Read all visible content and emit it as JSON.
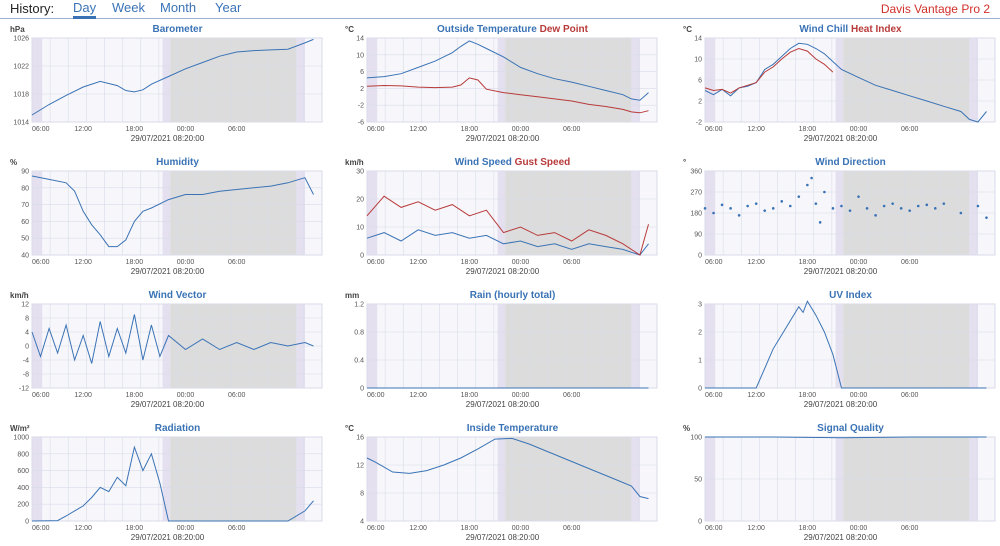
{
  "header": {
    "history_label": "History:",
    "tabs": [
      "Day",
      "Week",
      "Month",
      "Year"
    ],
    "active_tab": "Day",
    "station": "Davis Vantage Pro 2"
  },
  "colors": {
    "blue": "#3a73b5",
    "red": "#b83a3a",
    "grid": "#d8dbe8",
    "night": "#dcdcdc",
    "plot": "#f7f7fb"
  },
  "chart_data": [
    {
      "id": "barometer",
      "type": "line",
      "title": [
        {
          "text": "Barometer",
          "color": "blue"
        }
      ],
      "unit": "hPa",
      "ylim": [
        1014,
        1026
      ],
      "yticks": [
        1014,
        1018,
        1022,
        1026
      ],
      "xticks": [
        "06:00",
        "12:00",
        "18:00",
        "00:00",
        "06:00"
      ],
      "footer": "29/07/2021 08:20:00",
      "series": [
        {
          "name": "Barometer",
          "color": "blue",
          "x": [
            0,
            2,
            4,
            6,
            8,
            10,
            11,
            12,
            13,
            14,
            16,
            18,
            20,
            22,
            24,
            26,
            28,
            30,
            32,
            33
          ],
          "y": [
            1015,
            1016.5,
            1017.8,
            1019,
            1019.8,
            1019.2,
            1018.5,
            1018.3,
            1018.6,
            1019.4,
            1020.5,
            1021.6,
            1022.5,
            1023.4,
            1024,
            1024.2,
            1024.3,
            1024.4,
            1025.3,
            1025.8
          ]
        }
      ]
    },
    {
      "id": "outside-temperature",
      "type": "line",
      "title": [
        {
          "text": "Outside Temperature",
          "color": "blue"
        },
        {
          "text": " Dew Point",
          "color": "red"
        }
      ],
      "unit": "°C",
      "ylim": [
        -6,
        14
      ],
      "yticks": [
        -6,
        -2,
        2,
        6,
        10,
        14
      ],
      "xticks": [
        "06:00",
        "12:00",
        "18:00",
        "00:00",
        "06:00"
      ],
      "footer": "29/07/2021 08:20:00",
      "series": [
        {
          "name": "Outside Temperature",
          "color": "blue",
          "x": [
            0,
            2,
            4,
            6,
            8,
            10,
            11,
            12,
            13,
            14,
            16,
            18,
            20,
            22,
            24,
            26,
            28,
            30,
            31,
            32,
            33
          ],
          "y": [
            4.5,
            4.8,
            5.5,
            7,
            8.5,
            10.5,
            12,
            13.3,
            12.5,
            11.5,
            9.5,
            7,
            5.5,
            4.3,
            3.5,
            2.5,
            1.5,
            0.5,
            -0.5,
            -0.8,
            1
          ]
        },
        {
          "name": "Dew Point",
          "color": "red",
          "x": [
            0,
            2,
            4,
            6,
            8,
            10,
            11,
            12,
            13,
            14,
            16,
            18,
            20,
            22,
            24,
            26,
            28,
            30,
            31,
            32,
            33
          ],
          "y": [
            2.5,
            2.7,
            2.6,
            2.3,
            2.2,
            2.3,
            2.8,
            4.5,
            4,
            1.8,
            1,
            0.5,
            0,
            -0.5,
            -1,
            -1.8,
            -2.3,
            -3,
            -3.6,
            -3.8,
            -3.3
          ]
        }
      ]
    },
    {
      "id": "wind-chill",
      "type": "line",
      "title": [
        {
          "text": "Wind Chill",
          "color": "blue"
        },
        {
          "text": " Heat Index",
          "color": "red"
        }
      ],
      "unit": "°C",
      "ylim": [
        -2,
        14
      ],
      "yticks": [
        -2,
        2,
        6,
        10,
        14
      ],
      "xticks": [
        "06:00",
        "12:00",
        "18:00",
        "00:00",
        "06:00"
      ],
      "footer": "29/07/2021 08:20:00",
      "series": [
        {
          "name": "Wind Chill",
          "color": "blue",
          "x": [
            0,
            1,
            2,
            3,
            4,
            5,
            6,
            7,
            8,
            9,
            10,
            11,
            12,
            13,
            14,
            15,
            16,
            18,
            20,
            22,
            24,
            26,
            28,
            30,
            31,
            32,
            33
          ],
          "y": [
            4,
            3.2,
            4.2,
            3,
            4.5,
            4.8,
            5.5,
            8,
            9,
            10.5,
            12,
            13,
            12.8,
            12,
            11,
            9.5,
            8,
            6.5,
            5,
            4,
            3,
            2,
            1,
            0,
            -1.5,
            -2,
            0
          ]
        },
        {
          "name": "Heat Index",
          "color": "red",
          "x": [
            0,
            1,
            2,
            3,
            4,
            5,
            6,
            7,
            8,
            9,
            10,
            11,
            12,
            13,
            14,
            15
          ],
          "y": [
            4.5,
            4,
            4.2,
            3.5,
            4.5,
            5,
            5.5,
            7.5,
            8.5,
            10,
            11.3,
            12,
            11.5,
            10,
            9,
            7.5
          ]
        }
      ]
    },
    {
      "id": "humidity",
      "type": "line",
      "title": [
        {
          "text": "Humidity",
          "color": "blue"
        }
      ],
      "unit": "%",
      "ylim": [
        40,
        90
      ],
      "yticks": [
        40,
        50,
        60,
        70,
        80,
        90
      ],
      "xticks": [
        "06:00",
        "12:00",
        "18:00",
        "00:00",
        "06:00"
      ],
      "footer": "29/07/2021 08:20:00",
      "series": [
        {
          "name": "Humidity",
          "color": "blue",
          "x": [
            0,
            2,
            4,
            5,
            6,
            7,
            8,
            9,
            10,
            11,
            12,
            13,
            14,
            16,
            18,
            20,
            22,
            24,
            26,
            28,
            30,
            32,
            33
          ],
          "y": [
            87,
            85,
            83,
            78,
            66,
            58,
            52,
            45,
            45,
            49,
            60,
            66,
            68,
            73,
            76,
            76,
            78,
            79,
            80,
            81,
            83,
            86,
            76
          ]
        }
      ]
    },
    {
      "id": "wind-speed",
      "type": "line",
      "title": [
        {
          "text": "Wind Speed",
          "color": "blue"
        },
        {
          "text": " Gust Speed",
          "color": "red"
        }
      ],
      "unit": "km/h",
      "ylim": [
        0,
        30
      ],
      "yticks": [
        0,
        10,
        20,
        30
      ],
      "xticks": [
        "06:00",
        "12:00",
        "18:00",
        "00:00",
        "06:00"
      ],
      "footer": "29/07/2021 08:20:00",
      "series": [
        {
          "name": "Wind Speed",
          "color": "blue",
          "x": [
            0,
            2,
            4,
            6,
            8,
            10,
            12,
            14,
            16,
            18,
            20,
            22,
            24,
            26,
            28,
            30,
            32,
            33
          ],
          "y": [
            6,
            8,
            5,
            9,
            7,
            8,
            6,
            7,
            4,
            5,
            3,
            4,
            2,
            4,
            3,
            2,
            0,
            4
          ]
        },
        {
          "name": "Gust Speed",
          "color": "red",
          "x": [
            0,
            2,
            4,
            6,
            8,
            10,
            12,
            14,
            16,
            18,
            20,
            22,
            24,
            26,
            28,
            30,
            32,
            33
          ],
          "y": [
            14,
            21,
            17,
            19,
            16,
            18,
            14,
            16,
            8,
            10,
            7,
            8,
            5,
            9,
            7,
            4,
            0,
            11
          ]
        }
      ]
    },
    {
      "id": "wind-direction",
      "type": "scatter",
      "title": [
        {
          "text": "Wind Direction",
          "color": "blue"
        }
      ],
      "unit": "°",
      "ylim": [
        0,
        360
      ],
      "yticks": [
        0,
        90,
        180,
        270,
        360
      ],
      "xticks": [
        "06:00",
        "12:00",
        "18:00",
        "00:00",
        "06:00"
      ],
      "footer": "29/07/2021 08:20:00",
      "series": [
        {
          "name": "Wind Direction",
          "color": "blue",
          "x": [
            0,
            1,
            2,
            3,
            4,
            5,
            6,
            7,
            8,
            9,
            10,
            11,
            12,
            12.5,
            13,
            13.5,
            14,
            15,
            16,
            17,
            18,
            19,
            20,
            21,
            22,
            23,
            24,
            25,
            26,
            27,
            28,
            30,
            32,
            33
          ],
          "y": [
            200,
            180,
            215,
            200,
            170,
            210,
            220,
            190,
            200,
            230,
            210,
            250,
            300,
            330,
            220,
            140,
            270,
            200,
            210,
            190,
            250,
            200,
            170,
            210,
            220,
            200,
            190,
            210,
            215,
            200,
            220,
            180,
            210,
            160
          ]
        }
      ]
    },
    {
      "id": "wind-vector",
      "type": "line",
      "title": [
        {
          "text": "Wind Vector",
          "color": "blue"
        }
      ],
      "unit": "km/h",
      "ylim": [
        -12,
        12
      ],
      "yticks": [
        -12,
        -8,
        -4,
        0,
        4,
        8,
        12
      ],
      "xticks": [
        "06:00",
        "12:00",
        "18:00",
        "00:00",
        "06:00"
      ],
      "footer": "29/07/2021 08:20:00",
      "series": [
        {
          "name": "Wind Vector",
          "color": "blue",
          "x": [
            0,
            1,
            2,
            3,
            4,
            5,
            6,
            7,
            8,
            9,
            10,
            11,
            12,
            13,
            14,
            15,
            16,
            18,
            20,
            22,
            24,
            26,
            28,
            30,
            32,
            33
          ],
          "y": [
            4,
            -3,
            5,
            -2,
            6,
            -4,
            3,
            -5,
            7,
            -3,
            5,
            -2,
            9,
            -4,
            6,
            -3,
            3,
            -1,
            2,
            -1,
            1,
            -1,
            1,
            0,
            1,
            0
          ]
        }
      ]
    },
    {
      "id": "rain",
      "type": "line",
      "title": [
        {
          "text": "Rain (hourly total)",
          "color": "blue"
        }
      ],
      "unit": "mm",
      "ylim": [
        0,
        1.2
      ],
      "yticks": [
        0,
        0.4,
        0.8,
        1.2
      ],
      "xticks": [
        "06:00",
        "12:00",
        "18:00",
        "00:00",
        "06:00"
      ],
      "footer": "29/07/2021 08:20:00",
      "series": [
        {
          "name": "Rain",
          "color": "blue",
          "x": [
            0,
            33
          ],
          "y": [
            0,
            0
          ]
        }
      ]
    },
    {
      "id": "uv-index",
      "type": "line",
      "title": [
        {
          "text": "UV Index",
          "color": "blue"
        }
      ],
      "unit": "",
      "ylim": [
        0,
        3
      ],
      "yticks": [
        0,
        1,
        2,
        3
      ],
      "xticks": [
        "06:00",
        "12:00",
        "18:00",
        "00:00",
        "06:00"
      ],
      "footer": "29/07/2021 08:20:00",
      "series": [
        {
          "name": "UV Index",
          "color": "blue",
          "x": [
            0,
            4,
            6,
            7,
            8,
            9,
            10,
            11,
            11.5,
            12,
            13,
            14,
            15,
            16,
            18,
            22,
            26,
            30,
            33
          ],
          "y": [
            0,
            0,
            0,
            0.7,
            1.4,
            1.9,
            2.4,
            2.9,
            2.7,
            3.1,
            2.6,
            2,
            1.2,
            0,
            0,
            0,
            0,
            0,
            0
          ]
        }
      ]
    },
    {
      "id": "radiation",
      "type": "line",
      "title": [
        {
          "text": "Radiation",
          "color": "blue"
        }
      ],
      "unit": "W/m²",
      "ylim": [
        0,
        1000
      ],
      "yticks": [
        0,
        200,
        400,
        600,
        800,
        1000
      ],
      "xticks": [
        "06:00",
        "12:00",
        "18:00",
        "00:00",
        "06:00"
      ],
      "footer": "29/07/2021 08:20:00",
      "series": [
        {
          "name": "Radiation",
          "color": "blue",
          "x": [
            0,
            3,
            4,
            5,
            6,
            7,
            8,
            9,
            10,
            11,
            12,
            13,
            14,
            15,
            16,
            18,
            22,
            26,
            30,
            32,
            33
          ],
          "y": [
            0,
            5,
            60,
            120,
            180,
            280,
            400,
            350,
            520,
            420,
            880,
            600,
            800,
            450,
            0,
            0,
            0,
            0,
            0,
            120,
            240
          ]
        }
      ]
    },
    {
      "id": "inside-temperature",
      "type": "line",
      "title": [
        {
          "text": "Inside Temperature",
          "color": "blue"
        }
      ],
      "unit": "°C",
      "ylim": [
        4,
        16
      ],
      "yticks": [
        4,
        8,
        12,
        16
      ],
      "xticks": [
        "06:00",
        "12:00",
        "18:00",
        "00:00",
        "06:00"
      ],
      "footer": "29/07/2021 08:20:00",
      "series": [
        {
          "name": "Inside Temperature",
          "color": "blue",
          "x": [
            0,
            1,
            3,
            5,
            7,
            9,
            11,
            13,
            15,
            17,
            19,
            21,
            23,
            25,
            27,
            29,
            31,
            32,
            33
          ],
          "y": [
            13,
            12.4,
            11,
            10.8,
            11.2,
            12,
            13,
            14.3,
            15.7,
            15.8,
            15,
            14,
            13,
            12,
            11,
            10,
            9,
            7.5,
            7.2
          ]
        }
      ]
    },
    {
      "id": "signal-quality",
      "type": "line",
      "title": [
        {
          "text": "Signal Quality",
          "color": "blue"
        }
      ],
      "unit": "%",
      "ylim": [
        0,
        100
      ],
      "yticks": [
        0,
        50,
        100
      ],
      "xticks": [
        "06:00",
        "12:00",
        "18:00",
        "00:00",
        "06:00"
      ],
      "footer": "29/07/2021 08:20:00",
      "series": [
        {
          "name": "Signal Quality",
          "color": "blue",
          "x": [
            0,
            8,
            16,
            24,
            33
          ],
          "y": [
            100,
            100,
            99,
            100,
            100
          ]
        }
      ]
    }
  ]
}
